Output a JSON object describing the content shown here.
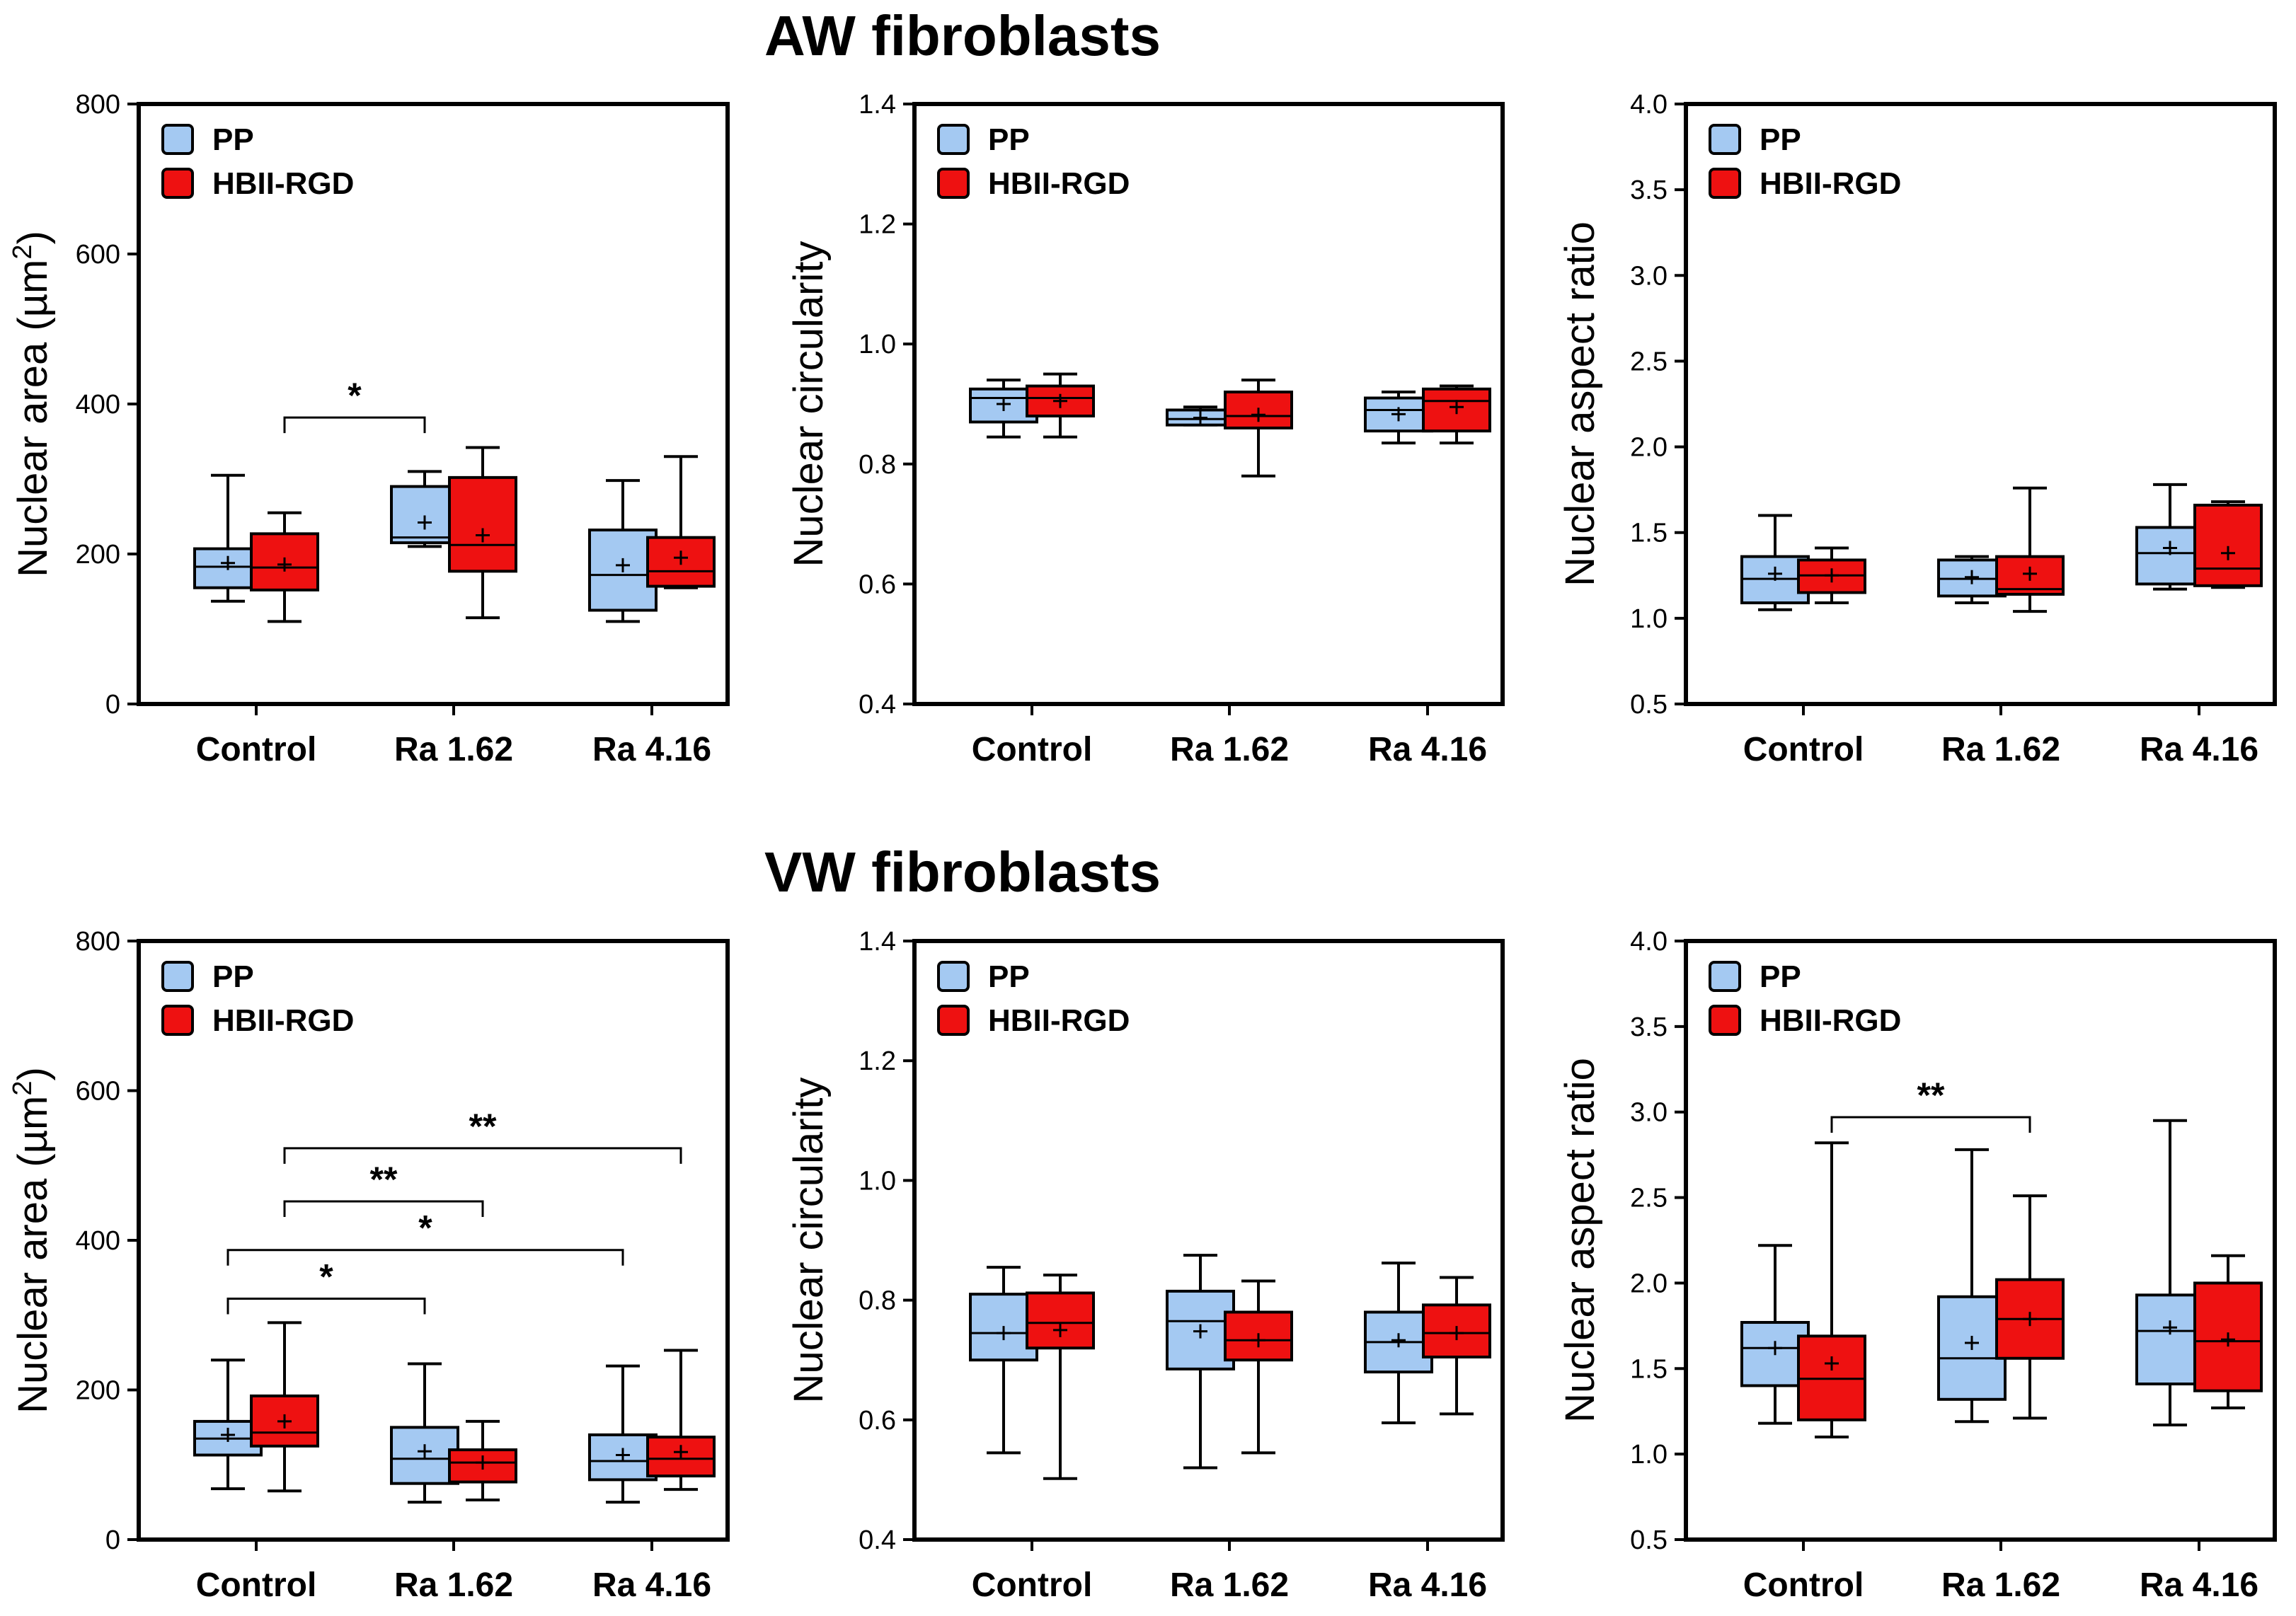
{
  "titles": {
    "top": "AW fibroblasts",
    "bottom": "VW fibroblasts"
  },
  "colors": {
    "PP": "#a4c9f2",
    "HBII-RGD": "#ee1111",
    "axis": "#000000"
  },
  "chart_data": [
    {
      "type": "box",
      "section": "AW fibroblasts",
      "title": "",
      "ylabel": "Nuclear area (µm²)",
      "ylabel_main": "Nuclear area (",
      "ylabel_unit": "µm",
      "ylabel_sup": "2",
      "ylabel_close": ")",
      "ylim": [
        0,
        800
      ],
      "yticks": [
        0,
        200,
        400,
        600,
        800
      ],
      "ytick_labels": [
        "0",
        "200",
        "400",
        "600",
        "800"
      ],
      "categories": [
        "Control",
        "Ra 1.62",
        "Ra 4.16"
      ],
      "legend": [
        "PP",
        "HBII-RGD"
      ],
      "legend_position": "top-left",
      "series": [
        {
          "name": "PP",
          "color": "#a4c9f2",
          "boxes": [
            {
              "min": 137,
              "q1": 155,
              "median": 183,
              "q3": 207,
              "max": 305,
              "mean": 188
            },
            {
              "min": 210,
              "q1": 215,
              "median": 222,
              "q3": 290,
              "max": 310,
              "mean": 242
            },
            {
              "min": 110,
              "q1": 125,
              "median": 172,
              "q3": 232,
              "max": 298,
              "mean": 185
            }
          ]
        },
        {
          "name": "HBII-RGD",
          "color": "#ee1111",
          "boxes": [
            {
              "min": 110,
              "q1": 152,
              "median": 182,
              "q3": 227,
              "max": 255,
              "mean": 186
            },
            {
              "min": 115,
              "q1": 177,
              "median": 212,
              "q3": 302,
              "max": 342,
              "mean": 225
            },
            {
              "min": 155,
              "q1": 157,
              "median": 177,
              "q3": 222,
              "max": 330,
              "mean": 195
            }
          ]
        }
      ],
      "significance": [
        {
          "label": "*",
          "from": 1,
          "to": 2,
          "y": 382
        }
      ]
    },
    {
      "type": "box",
      "section": "AW fibroblasts",
      "title": "",
      "ylabel": "Nuclear circularity",
      "ylim": [
        0.4,
        1.4
      ],
      "yticks": [
        0.4,
        0.6,
        0.8,
        1.0,
        1.2,
        1.4
      ],
      "ytick_labels": [
        "0.4",
        "0.6",
        "0.8",
        "1.0",
        "1.2",
        "1.4"
      ],
      "categories": [
        "Control",
        "Ra 1.62",
        "Ra 4.16"
      ],
      "legend": [
        "PP",
        "HBII-RGD"
      ],
      "legend_position": "top-left",
      "series": [
        {
          "name": "PP",
          "color": "#a4c9f2",
          "boxes": [
            {
              "min": 0.845,
              "q1": 0.87,
              "median": 0.91,
              "q3": 0.925,
              "max": 0.94,
              "mean": 0.9
            },
            {
              "min": 0.865,
              "q1": 0.865,
              "median": 0.875,
              "q3": 0.89,
              "max": 0.895,
              "mean": 0.877
            },
            {
              "min": 0.835,
              "q1": 0.855,
              "median": 0.89,
              "q3": 0.91,
              "max": 0.92,
              "mean": 0.883
            }
          ]
        },
        {
          "name": "HBII-RGD",
          "color": "#ee1111",
          "boxes": [
            {
              "min": 0.845,
              "q1": 0.88,
              "median": 0.91,
              "q3": 0.93,
              "max": 0.95,
              "mean": 0.905
            },
            {
              "min": 0.78,
              "q1": 0.86,
              "median": 0.88,
              "q3": 0.92,
              "max": 0.94,
              "mean": 0.882
            },
            {
              "min": 0.835,
              "q1": 0.855,
              "median": 0.905,
              "q3": 0.925,
              "max": 0.93,
              "mean": 0.895
            }
          ]
        }
      ],
      "significance": []
    },
    {
      "type": "box",
      "section": "AW fibroblasts",
      "title": "",
      "ylabel": "Nuclear aspect ratio",
      "ylim": [
        0.5,
        4.0
      ],
      "yticks": [
        0.5,
        1.0,
        1.5,
        2.0,
        2.5,
        3.0,
        3.5,
        4.0
      ],
      "ytick_labels": [
        "0.5",
        "1.0",
        "1.5",
        "2.0",
        "2.5",
        "3.0",
        "3.5",
        "4.0"
      ],
      "categories": [
        "Control",
        "Ra 1.62",
        "Ra 4.16"
      ],
      "legend": [
        "PP",
        "HBII-RGD"
      ],
      "legend_position": "top-left",
      "series": [
        {
          "name": "PP",
          "color": "#a4c9f2",
          "boxes": [
            {
              "min": 1.05,
              "q1": 1.09,
              "median": 1.23,
              "q3": 1.36,
              "max": 1.6,
              "mean": 1.26
            },
            {
              "min": 1.09,
              "q1": 1.13,
              "median": 1.23,
              "q3": 1.34,
              "max": 1.36,
              "mean": 1.24
            },
            {
              "min": 1.17,
              "q1": 1.2,
              "median": 1.38,
              "q3": 1.53,
              "max": 1.78,
              "mean": 1.41
            }
          ]
        },
        {
          "name": "HBII-RGD",
          "color": "#ee1111",
          "boxes": [
            {
              "min": 1.09,
              "q1": 1.15,
              "median": 1.25,
              "q3": 1.34,
              "max": 1.41,
              "mean": 1.25
            },
            {
              "min": 1.04,
              "q1": 1.14,
              "median": 1.17,
              "q3": 1.36,
              "max": 1.76,
              "mean": 1.26
            },
            {
              "min": 1.18,
              "q1": 1.19,
              "median": 1.29,
              "q3": 1.66,
              "max": 1.68,
              "mean": 1.38
            }
          ]
        }
      ],
      "significance": []
    },
    {
      "type": "box",
      "section": "VW fibroblasts",
      "title": "",
      "ylabel": "Nuclear area (µm²)",
      "ylabel_main": "Nuclear area (",
      "ylabel_unit": "µm",
      "ylabel_sup": "2",
      "ylabel_close": ")",
      "ylim": [
        0,
        800
      ],
      "yticks": [
        0,
        200,
        400,
        600,
        800
      ],
      "ytick_labels": [
        "0",
        "200",
        "400",
        "600",
        "800"
      ],
      "categories": [
        "Control",
        "Ra 1.62",
        "Ra 4.16"
      ],
      "legend": [
        "PP",
        "HBII-RGD"
      ],
      "legend_position": "top-left",
      "series": [
        {
          "name": "PP",
          "color": "#a4c9f2",
          "boxes": [
            {
              "min": 68,
              "q1": 113,
              "median": 135,
              "q3": 158,
              "max": 240,
              "mean": 140
            },
            {
              "min": 50,
              "q1": 75,
              "median": 108,
              "q3": 150,
              "max": 235,
              "mean": 118
            },
            {
              "min": 50,
              "q1": 80,
              "median": 105,
              "q3": 140,
              "max": 232,
              "mean": 113
            }
          ]
        },
        {
          "name": "HBII-RGD",
          "color": "#ee1111",
          "boxes": [
            {
              "min": 65,
              "q1": 125,
              "median": 143,
              "q3": 192,
              "max": 290,
              "mean": 158
            },
            {
              "min": 53,
              "q1": 77,
              "median": 103,
              "q3": 120,
              "max": 158,
              "mean": 103
            },
            {
              "min": 67,
              "q1": 85,
              "median": 108,
              "q3": 137,
              "max": 253,
              "mean": 117
            }
          ]
        }
      ],
      "significance": [
        {
          "label": "**",
          "from": 1,
          "to": 5,
          "y": 523
        },
        {
          "label": "**",
          "from": 1,
          "to": 3,
          "y": 452
        },
        {
          "label": "*",
          "from": 0,
          "to": 4,
          "y": 387
        },
        {
          "label": "*",
          "from": 0,
          "to": 2,
          "y": 322
        }
      ]
    },
    {
      "type": "box",
      "section": "VW fibroblasts",
      "title": "",
      "ylabel": "Nuclear circularity",
      "ylim": [
        0.4,
        1.4
      ],
      "yticks": [
        0.4,
        0.6,
        0.8,
        1.0,
        1.2,
        1.4
      ],
      "ytick_labels": [
        "0.4",
        "0.6",
        "0.8",
        "1.0",
        "1.2",
        "1.4"
      ],
      "categories": [
        "Control",
        "Ra 1.62",
        "Ra 4.16"
      ],
      "legend": [
        "PP",
        "HBII-RGD"
      ],
      "legend_position": "top-left",
      "series": [
        {
          "name": "PP",
          "color": "#a4c9f2",
          "boxes": [
            {
              "min": 0.545,
              "q1": 0.7,
              "median": 0.745,
              "q3": 0.81,
              "max": 0.855,
              "mean": 0.745
            },
            {
              "min": 0.52,
              "q1": 0.685,
              "median": 0.765,
              "q3": 0.815,
              "max": 0.875,
              "mean": 0.748
            },
            {
              "min": 0.595,
              "q1": 0.68,
              "median": 0.73,
              "q3": 0.78,
              "max": 0.862,
              "mean": 0.733
            }
          ]
        },
        {
          "name": "HBII-RGD",
          "color": "#ee1111",
          "boxes": [
            {
              "min": 0.502,
              "q1": 0.72,
              "median": 0.762,
              "q3": 0.812,
              "max": 0.842,
              "mean": 0.75
            },
            {
              "min": 0.545,
              "q1": 0.7,
              "median": 0.733,
              "q3": 0.78,
              "max": 0.832,
              "mean": 0.733
            },
            {
              "min": 0.61,
              "q1": 0.705,
              "median": 0.745,
              "q3": 0.792,
              "max": 0.838,
              "mean": 0.745
            }
          ]
        }
      ],
      "significance": []
    },
    {
      "type": "box",
      "section": "VW fibroblasts",
      "title": "",
      "ylabel": "Nuclear aspect ratio",
      "ylim": [
        0.5,
        4.0
      ],
      "yticks": [
        0.5,
        1.0,
        1.5,
        2.0,
        2.5,
        3.0,
        3.5,
        4.0
      ],
      "ytick_labels": [
        "0.5",
        "1.0",
        "1.5",
        "2.0",
        "2.5",
        "3.0",
        "3.5",
        "4.0"
      ],
      "categories": [
        "Control",
        "Ra 1.62",
        "Ra 4.16"
      ],
      "legend": [
        "PP",
        "HBII-RGD"
      ],
      "legend_position": "top-left",
      "series": [
        {
          "name": "PP",
          "color": "#a4c9f2",
          "boxes": [
            {
              "min": 1.18,
              "q1": 1.4,
              "median": 1.62,
              "q3": 1.77,
              "max": 2.22,
              "mean": 1.62
            },
            {
              "min": 1.19,
              "q1": 1.32,
              "median": 1.56,
              "q3": 1.92,
              "max": 2.78,
              "mean": 1.65
            },
            {
              "min": 1.17,
              "q1": 1.41,
              "median": 1.72,
              "q3": 1.93,
              "max": 2.95,
              "mean": 1.74
            }
          ]
        },
        {
          "name": "HBII-RGD",
          "color": "#ee1111",
          "boxes": [
            {
              "min": 1.1,
              "q1": 1.2,
              "median": 1.44,
              "q3": 1.69,
              "max": 2.82,
              "mean": 1.53
            },
            {
              "min": 1.21,
              "q1": 1.56,
              "median": 1.79,
              "q3": 2.02,
              "max": 2.51,
              "mean": 1.79
            },
            {
              "min": 1.27,
              "q1": 1.37,
              "median": 1.66,
              "q3": 2.0,
              "max": 2.16,
              "mean": 1.67
            }
          ]
        }
      ],
      "significance": [
        {
          "label": "**",
          "from": 1,
          "to": 3,
          "y": 2.97
        }
      ]
    }
  ]
}
